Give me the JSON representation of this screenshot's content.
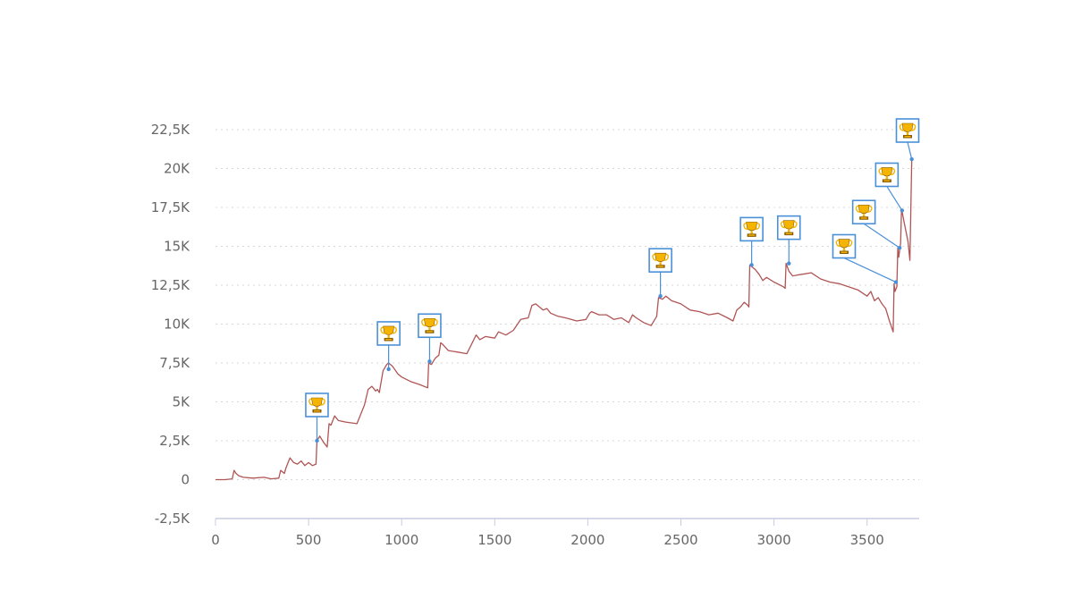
{
  "colors": {
    "series": "#b05555",
    "marker": "#4a90d9",
    "grid": "#d9d9d9",
    "axis": "#c8cde0",
    "text": "#666666",
    "trophy_gold": "#f5b400",
    "trophy_dark": "#8a5a00"
  },
  "chart_data": {
    "type": "line",
    "title": "",
    "xlabel": "",
    "ylabel": "",
    "xlim": [
      0,
      3780
    ],
    "ylim": [
      -2500,
      22500
    ],
    "grid": true,
    "legend": "none",
    "x_ticks": [
      0,
      500,
      1000,
      1500,
      2000,
      2500,
      3000,
      3500
    ],
    "x_tick_labels": [
      "0",
      "500",
      "1000",
      "1500",
      "2000",
      "2500",
      "3000",
      "3500"
    ],
    "y_ticks": [
      -2500,
      0,
      2500,
      5000,
      7500,
      10000,
      12500,
      15000,
      17500,
      20000,
      22500
    ],
    "y_tick_labels": [
      "-2,5K",
      "0",
      "2,5K",
      "5K",
      "7,5K",
      "10K",
      "12,5K",
      "15K",
      "17,5K",
      "20K",
      "22,5K"
    ],
    "series": [
      {
        "x": [
          0,
          50,
          90,
          100,
          110,
          125,
          150,
          200,
          260,
          300,
          340,
          350,
          370,
          380,
          400,
          420,
          440,
          460,
          480,
          500,
          520,
          540,
          545,
          560,
          580,
          600,
          610,
          620,
          640,
          660,
          700,
          760,
          800,
          820,
          840,
          860,
          870,
          880,
          900,
          920,
          930,
          950,
          980,
          1000,
          1050,
          1100,
          1140,
          1145,
          1160,
          1180,
          1200,
          1210,
          1220,
          1250,
          1300,
          1350,
          1400,
          1420,
          1450,
          1500,
          1520,
          1560,
          1600,
          1640,
          1680,
          1700,
          1720,
          1760,
          1780,
          1800,
          1840,
          1880,
          1940,
          1990,
          2010,
          2020,
          2060,
          2100,
          2140,
          2180,
          2220,
          2240,
          2260,
          2300,
          2340,
          2370,
          2380,
          2400,
          2420,
          2450,
          2500,
          2550,
          2600,
          2650,
          2700,
          2750,
          2780,
          2800,
          2820,
          2840,
          2860,
          2865,
          2870,
          2900,
          2920,
          2940,
          2960,
          3000,
          3050,
          3060,
          3065,
          3080,
          3100,
          3150,
          3200,
          3250,
          3300,
          3350,
          3400,
          3450,
          3500,
          3520,
          3540,
          3560,
          3580,
          3600,
          3620,
          3640,
          3645,
          3650,
          3660,
          3665,
          3670,
          3680,
          3685,
          3690,
          3700,
          3720,
          3730,
          3740
        ],
        "values": [
          0,
          0,
          50,
          600,
          400,
          250,
          150,
          100,
          150,
          50,
          100,
          600,
          400,
          800,
          1400,
          1100,
          1000,
          1200,
          900,
          1100,
          900,
          1000,
          2500,
          2800,
          2400,
          2100,
          3600,
          3500,
          4100,
          3800,
          3700,
          3600,
          4800,
          5800,
          6000,
          5700,
          5800,
          5600,
          7000,
          7400,
          7500,
          7300,
          6800,
          6600,
          6300,
          6100,
          5900,
          7500,
          7400,
          7800,
          8000,
          8800,
          8700,
          8300,
          8200,
          8100,
          9300,
          9000,
          9200,
          9100,
          9500,
          9300,
          9600,
          10300,
          10400,
          11200,
          11300,
          10900,
          11000,
          10700,
          10500,
          10400,
          10200,
          10300,
          10700,
          10800,
          10600,
          10600,
          10300,
          10400,
          10100,
          10600,
          10400,
          10100,
          9900,
          10500,
          11700,
          11600,
          11800,
          11500,
          11300,
          10900,
          10800,
          10600,
          10700,
          10400,
          10200,
          10900,
          11100,
          11400,
          11200,
          11100,
          13800,
          13500,
          13200,
          12800,
          13000,
          12700,
          12400,
          12300,
          13900,
          13400,
          13100,
          13200,
          13300,
          12900,
          12700,
          12600,
          12400,
          12200,
          11800,
          12100,
          11500,
          11700,
          11300,
          11000,
          10200,
          9500,
          12600,
          12100,
          12400,
          14900,
          14300,
          15200,
          17300,
          17100,
          16500,
          15300,
          14100,
          20700
        ]
      }
    ],
    "markers": [
      {
        "x": 545,
        "y": 2500
      },
      {
        "x": 930,
        "y": 7100
      },
      {
        "x": 1150,
        "y": 7600
      },
      {
        "x": 2390,
        "y": 11800
      },
      {
        "x": 2880,
        "y": 13800
      },
      {
        "x": 3080,
        "y": 13900
      },
      {
        "x": 3655,
        "y": 12700
      },
      {
        "x": 3675,
        "y": 14900
      },
      {
        "x": 3688,
        "y": 17300
      },
      {
        "x": 3740,
        "y": 20600
      }
    ]
  }
}
